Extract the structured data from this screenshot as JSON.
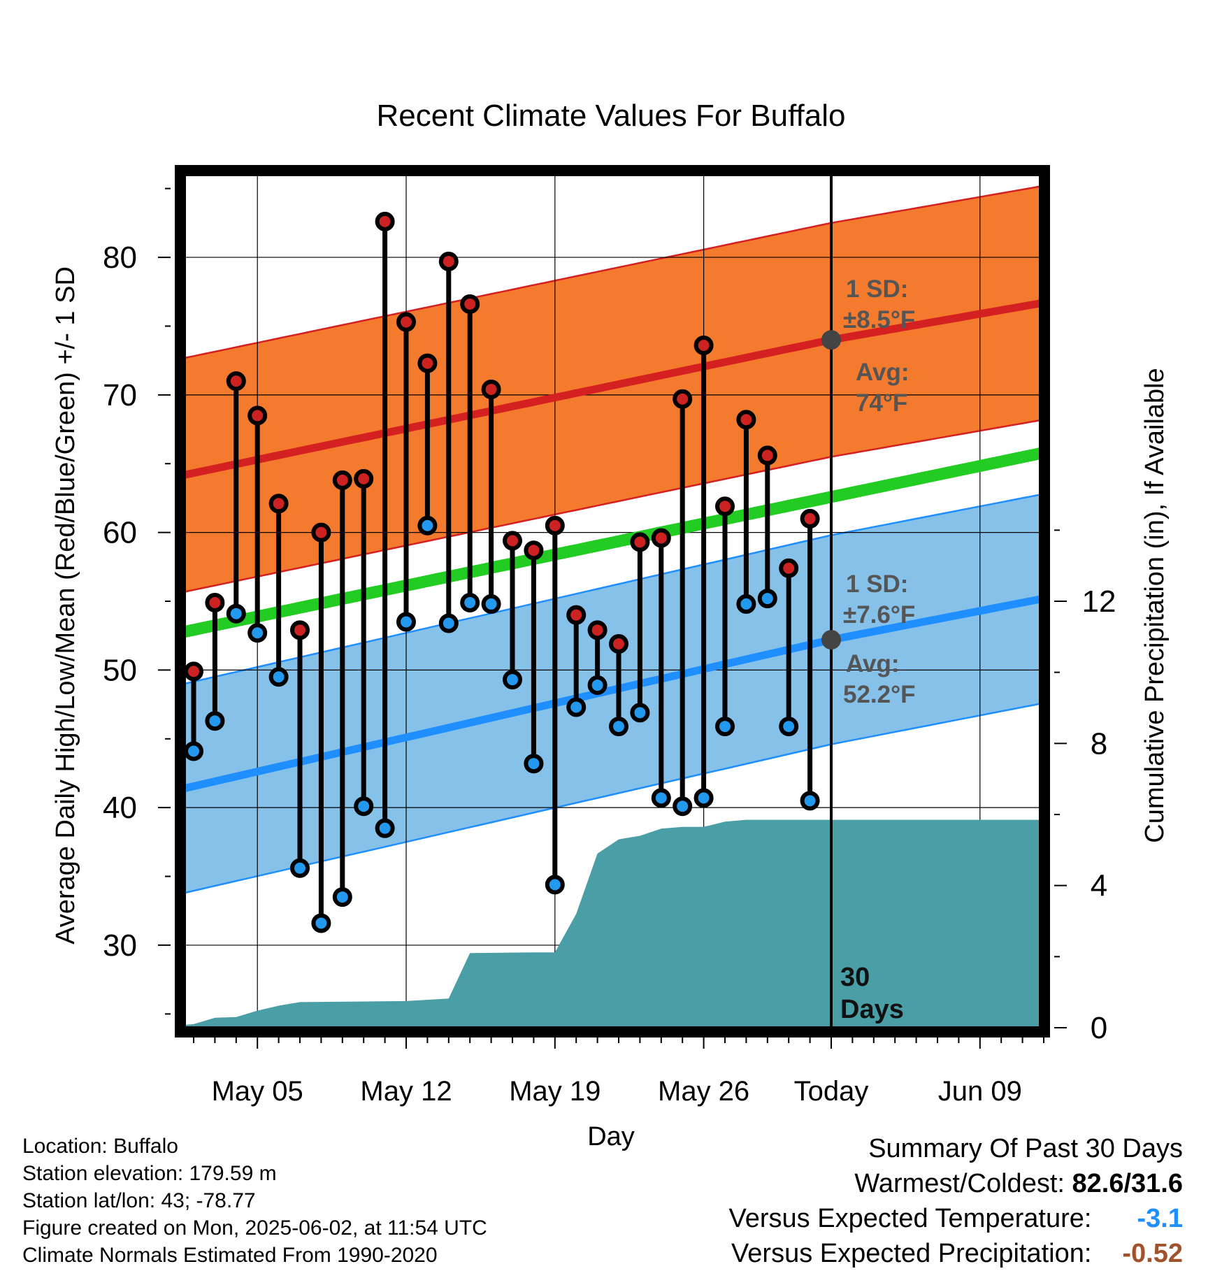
{
  "chart_data": {
    "type": "line",
    "title": "Recent Climate Values For Buffalo",
    "xlabel": "Day",
    "ylabel": "Average Daily High/Low/Mean (Red/Blue/Green) +/- 1 SD",
    "y2label": "Cumulative Precipitation (in), If Available",
    "ylim": [
      24,
      86
    ],
    "y2lim": [
      0,
      24
    ],
    "yticks": [
      30,
      40,
      50,
      60,
      70,
      80
    ],
    "y2ticks": [
      0,
      4,
      8,
      12
    ],
    "xlim_days": [
      -30.5,
      10.5
    ],
    "xticks": [
      {
        "day": -27,
        "label": "May 05"
      },
      {
        "day": -20,
        "label": "May 12"
      },
      {
        "day": -13,
        "label": "May 19"
      },
      {
        "day": -6,
        "label": "May 26"
      },
      {
        "day": 0,
        "label": "Today"
      },
      {
        "day": 7,
        "label": "Jun 09"
      }
    ],
    "series": [
      {
        "name": "High",
        "x": [
          -30,
          -29,
          -28,
          -27,
          -26,
          -25,
          -24,
          -23,
          -22,
          -21,
          -20,
          -19,
          -18,
          -17,
          -16,
          -15,
          -14,
          -13,
          -12,
          -11,
          -10,
          -9,
          -8,
          -7,
          -6,
          -5,
          -4,
          -3,
          -2,
          -1
        ],
        "values": [
          49.9,
          54.9,
          71.0,
          68.5,
          62.1,
          52.9,
          60.0,
          63.8,
          63.9,
          82.6,
          75.3,
          72.3,
          79.7,
          76.6,
          70.4,
          59.4,
          58.7,
          60.5,
          54.0,
          52.9,
          51.9,
          59.3,
          59.6,
          69.7,
          73.6,
          61.9,
          68.2,
          65.6,
          57.4,
          61.0
        ]
      },
      {
        "name": "Low",
        "x": [
          -30,
          -29,
          -28,
          -27,
          -26,
          -25,
          -24,
          -23,
          -22,
          -21,
          -20,
          -19,
          -18,
          -17,
          -16,
          -15,
          -14,
          -13,
          -12,
          -11,
          -10,
          -9,
          -8,
          -7,
          -6,
          -5,
          -4,
          -3,
          -2,
          -1
        ],
        "values": [
          44.1,
          46.3,
          54.1,
          52.7,
          49.5,
          35.6,
          31.6,
          33.5,
          40.1,
          38.5,
          53.5,
          60.5,
          53.4,
          54.9,
          54.8,
          49.3,
          43.2,
          34.4,
          47.3,
          48.9,
          45.9,
          46.9,
          40.7,
          40.1,
          40.7,
          45.9,
          54.8,
          55.2,
          45.9,
          40.5
        ]
      },
      {
        "name": "Avg High",
        "x": [
          -31,
          0,
          10
        ],
        "values": [
          64.0,
          74.0,
          76.7
        ],
        "sd": 8.5
      },
      {
        "name": "Avg Low",
        "x": [
          -31,
          0,
          10
        ],
        "values": [
          41.2,
          52.2,
          55.2
        ],
        "sd": 7.6
      },
      {
        "name": "Avg Mean",
        "x": [
          -31,
          10
        ],
        "values": [
          52.6,
          65.8
        ]
      },
      {
        "name": "Cumulative Precipitation",
        "x": [
          -31,
          -30,
          -29,
          -28,
          -27,
          -26,
          -25,
          -20,
          -18,
          -17,
          -14,
          -13,
          -12,
          -11,
          -10,
          -9,
          -8,
          -7,
          -6,
          -5,
          -4,
          -3,
          -2,
          -1,
          0,
          10
        ],
        "values": [
          0.05,
          0.1,
          0.28,
          0.3,
          0.48,
          0.62,
          0.72,
          0.75,
          0.82,
          2.1,
          2.12,
          2.12,
          3.2,
          4.9,
          5.3,
          5.4,
          5.6,
          5.65,
          5.65,
          5.8,
          5.85,
          5.85,
          5.85,
          5.85,
          5.85,
          5.85
        ]
      }
    ],
    "annotations": {
      "high_sd_label": "1 SD:",
      "high_sd_value": "±8.5°F",
      "high_avg_label": "Avg:",
      "high_avg_value": "74°F",
      "low_sd_label": "1 SD:",
      "low_sd_value": "±7.6°F",
      "low_avg_label": "Avg:",
      "low_avg_value": "52.2°F",
      "days_line1": "30",
      "days_line2": "Days"
    },
    "colors": {
      "high": "#d42020",
      "high_band": "#f47a2e",
      "low": "#1f8fff",
      "low_band": "#85c1e9",
      "mean": "#22cc22",
      "precip": "#4a9ea6",
      "marker_high": "#cc2222",
      "marker_low": "#2299ee"
    },
    "grid": true
  },
  "footer": {
    "location": "Location: Buffalo",
    "elevation": "Station elevation: 179.59 m",
    "latlon": "Station lat/lon: 43; -78.77",
    "created": "Figure created on Mon, 2025-06-02, at 11:54 UTC",
    "normals": "Climate Normals Estimated From 1990-2020"
  },
  "summary": {
    "title": "Summary Of Past 30 Days",
    "warm_cold_label": "Warmest/Coldest:",
    "warm_cold_value": "82.6/31.6",
    "temp_label": "Versus Expected Temperature:",
    "temp_value": "-3.1",
    "precip_label": "Versus Expected Precipitation:",
    "precip_value": "-0.52"
  }
}
